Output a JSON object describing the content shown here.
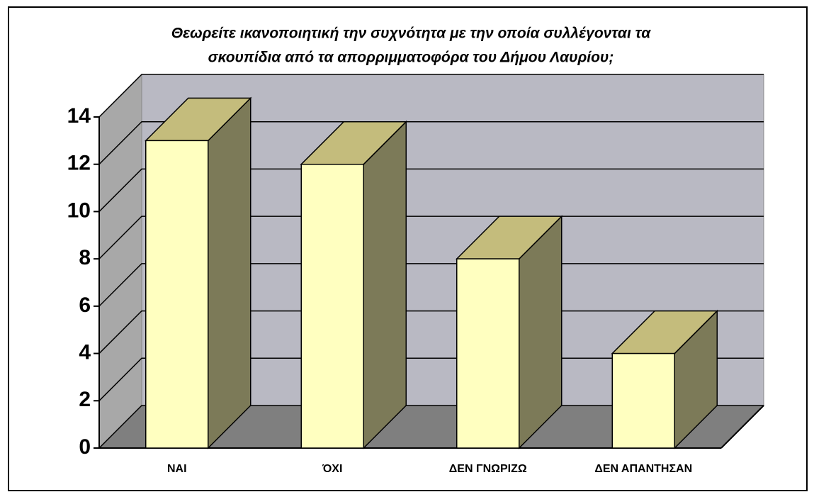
{
  "chart_data": {
    "type": "bar3d",
    "title": [
      "Θεωρείτε ικανοποιητική την συχνότητα με την οποία συλλέγονται τα",
      "σκουπίδια από τα απορριμματοφόρα του Δήμου Λαυρίου;"
    ],
    "categories": [
      "ΝΑΙ",
      "ΌΧΙ",
      "ΔΕΝ ΓΝΩΡΙΖΩ",
      "ΔΕΝ ΑΠΑΝΤΗΣΑΝ"
    ],
    "values": [
      13,
      12,
      8,
      4
    ],
    "color": "#ffffc0",
    "ylim": [
      0,
      14
    ],
    "yticks": [
      0,
      2,
      4,
      6,
      8,
      10,
      12,
      14
    ],
    "grid": true
  }
}
